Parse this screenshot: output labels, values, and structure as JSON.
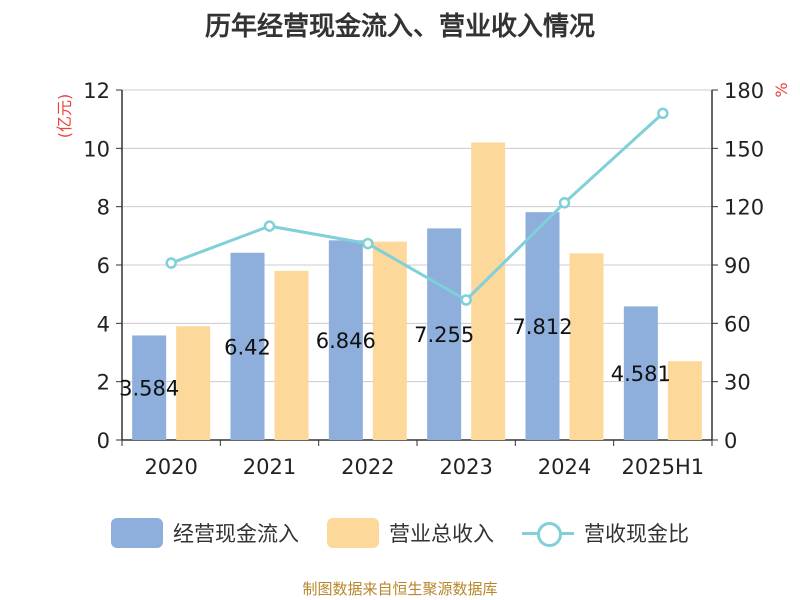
{
  "chart_data": {
    "type": "bar",
    "title": "历年经营现金流入、营业收入情况",
    "categories": [
      "2020",
      "2021",
      "2022",
      "2023",
      "2024",
      "2025H1"
    ],
    "series": [
      {
        "name": "经营现金流入",
        "kind": "bar",
        "axis": "left",
        "color": "#8eaedc",
        "values": [
          3.584,
          6.42,
          6.846,
          7.255,
          7.812,
          4.581
        ],
        "labels": [
          "3.584",
          "6.42",
          "6.846",
          "7.255",
          "7.812",
          "4.581"
        ]
      },
      {
        "name": "营业总收入",
        "kind": "bar",
        "axis": "left",
        "color": "#fdd89b",
        "values": [
          3.9,
          5.8,
          6.8,
          10.2,
          6.4,
          2.7
        ]
      },
      {
        "name": "营收现金比",
        "kind": "line",
        "axis": "right",
        "color": "#7fd0d8",
        "values": [
          91,
          110,
          101,
          72,
          122,
          168
        ]
      }
    ],
    "y_left": {
      "label": "(亿元)",
      "ylim": [
        0,
        12
      ],
      "ticks": [
        "0",
        "2",
        "4",
        "6",
        "8",
        "10",
        "12"
      ]
    },
    "y_right": {
      "label": "%",
      "ylim": [
        0,
        180
      ],
      "ticks": [
        "0",
        "30",
        "60",
        "90",
        "120",
        "150",
        "180"
      ]
    },
    "grid": true,
    "legend": "bottom"
  },
  "source": "制图数据来自恒生聚源数据库",
  "colors": {
    "axis_label": "#e8443a",
    "grid": "#cccccc",
    "text": "#333333"
  }
}
